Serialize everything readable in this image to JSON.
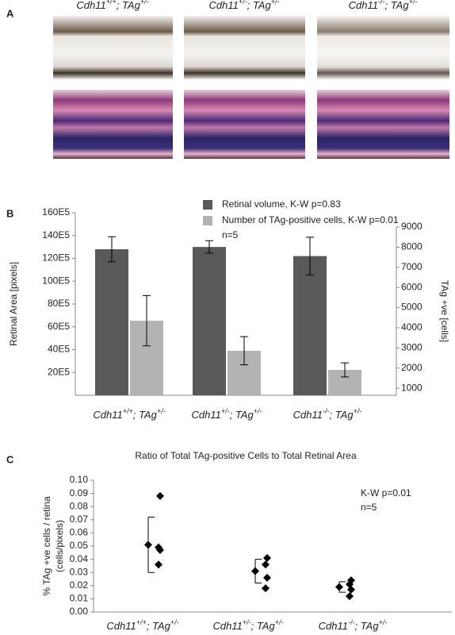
{
  "panel_a": {
    "label": "A",
    "columns": [
      [
        "Cdh11",
        "+/+",
        "; TAg",
        "+/-"
      ],
      [
        "Cdh11",
        "+/-",
        "; TAg",
        "+/-"
      ],
      [
        "Cdh11",
        "-/-",
        "; TAg",
        "+/-"
      ]
    ]
  },
  "chart_data": [
    {
      "type": "bar",
      "panel": "B",
      "ylabel": "Retinal Area [pixels]",
      "y2label": "TAg +ve [cells]",
      "categories": [
        [
          "Cdh11",
          "+/+",
          "; TAg",
          "+/-"
        ],
        [
          "Cdh11",
          "+/-",
          "; TAg",
          "+/-"
        ],
        [
          "Cdh11",
          "-/-",
          "; TAg",
          "+/-"
        ]
      ],
      "series": [
        {
          "name": "Retinal volume, K-W p=0.83",
          "color": "#595959",
          "values": [
            12800000,
            13000000,
            12200000
          ],
          "errors": [
            1100000,
            550000,
            1650000
          ]
        },
        {
          "name": "Number of TAg-positive cells, K-W p=0.01",
          "color": "#b3b3b3",
          "axis": "y2",
          "values": [
            4350,
            2860,
            1910
          ],
          "errors": [
            1250,
            700,
            350
          ]
        }
      ],
      "annotation": "n=5",
      "ylim": [
        0,
        16000000
      ],
      "yticks": [
        {
          "value": 2000000,
          "label": "20E5"
        },
        {
          "value": 4000000,
          "label": "40E5"
        },
        {
          "value": 6000000,
          "label": "60E5"
        },
        {
          "value": 8000000,
          "label": "80E5"
        },
        {
          "value": 10000000,
          "label": "100E5"
        },
        {
          "value": 12000000,
          "label": "120E5"
        },
        {
          "value": 14000000,
          "label": "140E5"
        },
        {
          "value": 16000000,
          "label": "160E5"
        }
      ],
      "y2lim": [
        650,
        9000
      ],
      "y2ticks": [
        1000,
        2000,
        3000,
        4000,
        5000,
        6000,
        7000,
        8000,
        9000
      ]
    },
    {
      "type": "dot",
      "panel": "C",
      "title": "Ratio of Total TAg-positive Cells to Total Retinal Area",
      "ylabel": [
        "% TAg +ve cells / retina",
        "(cells/pixels)"
      ],
      "categories": [
        [
          "Cdh11",
          "+/+",
          "; TAg",
          "+/-"
        ],
        [
          "Cdh11",
          "+/-",
          "; TAg",
          "+/-"
        ],
        [
          "Cdh11",
          "-/-",
          "; TAg",
          "+/-"
        ]
      ],
      "points": [
        [
          0.088,
          0.049,
          0.047,
          0.036
        ],
        [
          0.041,
          0.036,
          0.026,
          0.018
        ],
        [
          0.024,
          0.021,
          0.017,
          0.012
        ]
      ],
      "means": [
        0.051,
        0.031,
        0.019
      ],
      "errors": [
        0.021,
        0.009,
        0.004
      ],
      "color": "#000000",
      "annotations": [
        "K-W  p=0.01",
        "n=5"
      ],
      "ylim": [
        0,
        0.1
      ],
      "yticks": [
        {
          "value": 0,
          "label": "0.00"
        },
        0.01,
        0.02,
        0.03,
        0.04,
        0.05,
        0.06,
        0.07,
        0.08,
        0.09,
        {
          "value": 0.1,
          "label": "0.10"
        }
      ]
    }
  ]
}
